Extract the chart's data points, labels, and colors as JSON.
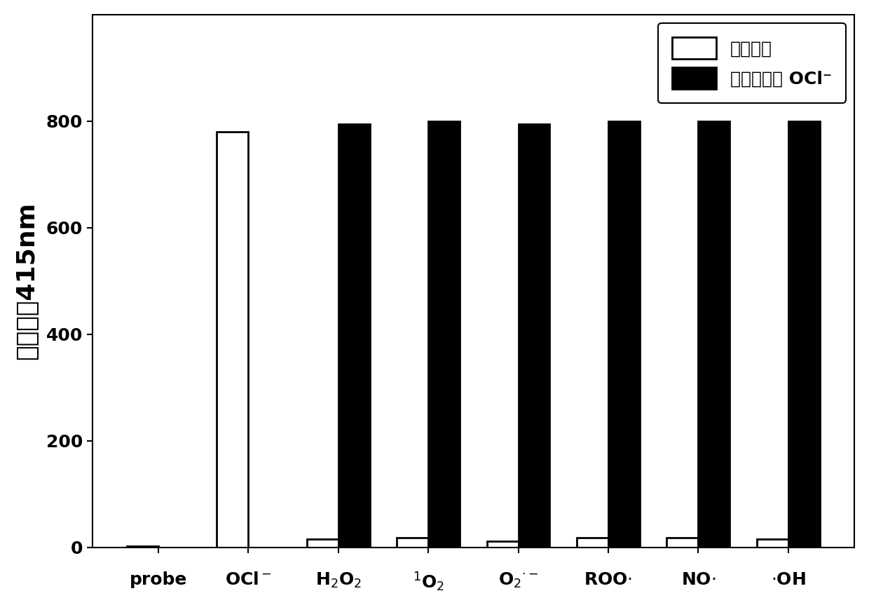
{
  "white_bars": [
    3,
    780,
    15,
    18,
    12,
    18,
    18,
    15
  ],
  "black_bars": [
    0,
    0,
    795,
    800,
    795,
    800,
    800,
    800
  ],
  "bar_width": 0.35,
  "ylim": [
    0,
    1000
  ],
  "yticks": [
    0,
    200,
    400,
    600,
    800
  ],
  "ylabel": "荧光强度415nm",
  "legend_white": "竞争离子",
  "legend_black": "竞争离子和 OCl⁻",
  "background_color": "#ffffff",
  "bar_color_white": "#ffffff",
  "bar_color_black": "#000000",
  "bar_edgecolor": "#000000",
  "tick_fontsize": 18,
  "ylabel_fontsize": 26,
  "legend_fontsize": 18,
  "bar_linewidth": 2.0
}
